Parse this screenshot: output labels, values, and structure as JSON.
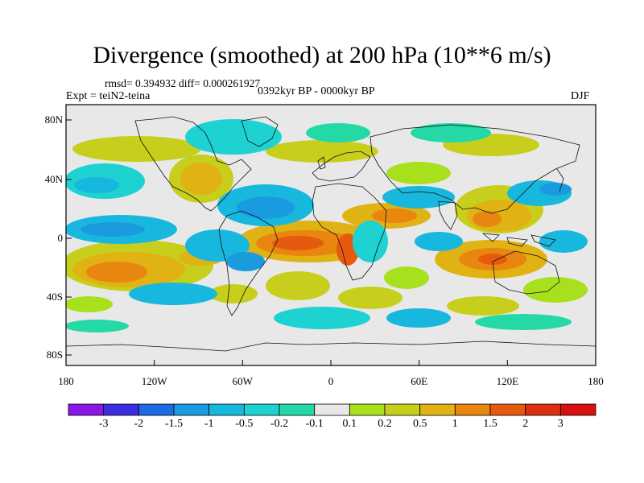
{
  "title": "Divergence (smoothed) at 200 hPa (10**6 m/s)",
  "stats": "rmsd= 0.394932 diff= 0.000261927",
  "expt": "Expt = teiN2-teina",
  "period": "0392kyr BP - 0000kyr BP",
  "season": "DJF",
  "lat_labels": [
    "80N",
    "40N",
    "0",
    "40S",
    "80S"
  ],
  "lon_labels": [
    "180",
    "120W",
    "60W",
    "0",
    "60E",
    "120E",
    "180"
  ],
  "colorbar": {
    "labels": [
      "-3",
      "-2",
      "-1.5",
      "-1",
      "-0.5",
      "-0.2",
      "-0.1",
      "0.1",
      "0.2",
      "0.5",
      "1",
      "1.5",
      "2",
      "3"
    ],
    "colors": [
      "#8a17e6",
      "#3c2ee0",
      "#1f6be6",
      "#1a9be0",
      "#18b8de",
      "#1ed2d2",
      "#24d9a6",
      "#e8e8e8",
      "#a8e01e",
      "#c7cf1c",
      "#e0b214",
      "#e8860f",
      "#e65a10",
      "#dc3010",
      "#d81010"
    ]
  }
}
